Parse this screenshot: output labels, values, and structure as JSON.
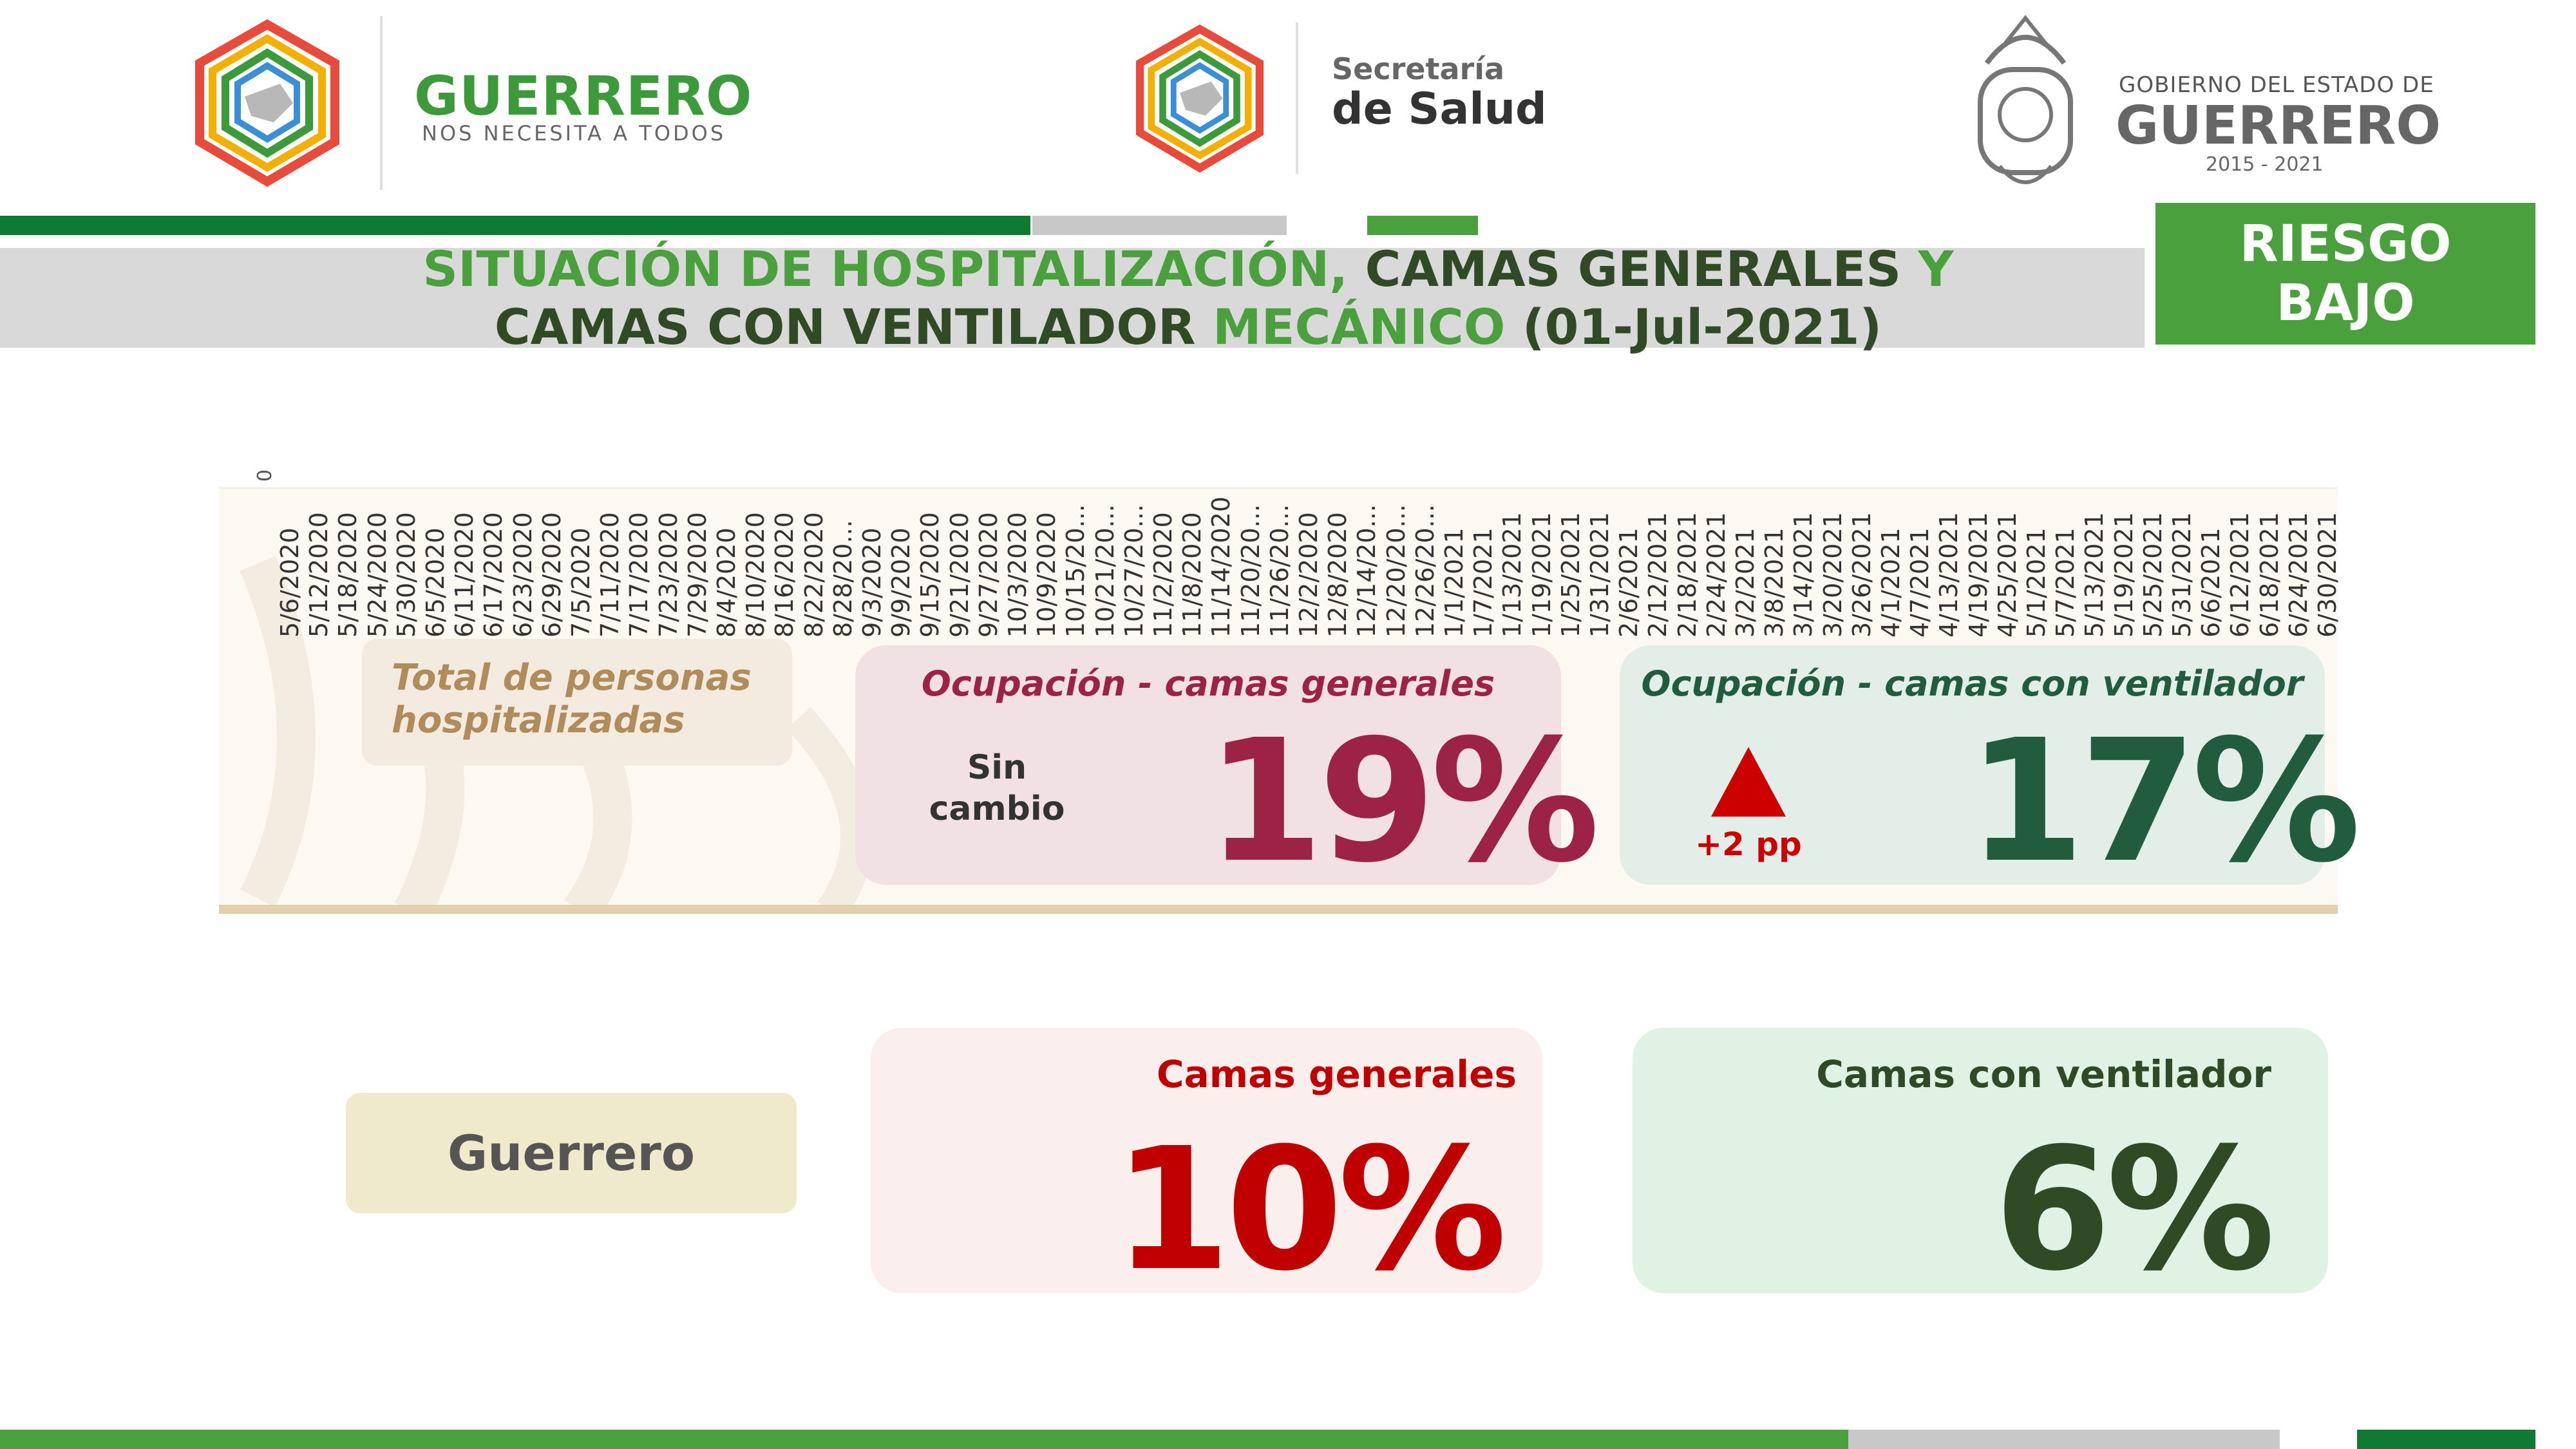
{
  "header": {
    "left_logo": {
      "title": "GUERRERO",
      "subtitle": "NOS NECESITA A TODOS"
    },
    "center_logo": {
      "line1": "Secretaría",
      "line2": "de Salud"
    },
    "right_logo": {
      "line1": "GOBIERNO DEL ESTADO DE",
      "line2": "GUERRERO",
      "line3": "2015 - 2021"
    }
  },
  "title": {
    "line1_part1": "SITUACIÓN DE HOSPITALIZACIÓN,",
    "line1_part2": " CAMAS GENERALES ",
    "line1_part3": "Y",
    "line2_part1": "CAMAS CON VENTILADOR ",
    "line2_part2": "MECÁNICO",
    "line2_part3": " (01-Jul-2021)"
  },
  "risk_badge": {
    "line1": "RIESGO",
    "line2": "BAJO"
  },
  "chart_data": {
    "type": "line",
    "title": "",
    "y_tick_label": "0",
    "x": [
      "5/6/2020",
      "5/12/2020",
      "5/18/2020",
      "5/24/2020",
      "5/30/2020",
      "6/5/2020",
      "6/11/2020",
      "6/17/2020",
      "6/23/2020",
      "6/29/2020",
      "7/5/2020",
      "7/11/2020",
      "7/17/2020",
      "7/23/2020",
      "7/29/2020",
      "8/4/2020",
      "8/10/2020",
      "8/16/2020",
      "8/22/2020",
      "8/28/20...",
      "9/3/2020",
      "9/9/2020",
      "9/15/2020",
      "9/21/2020",
      "9/27/2020",
      "10/3/2020",
      "10/9/2020",
      "10/15/20...",
      "10/21/20...",
      "10/27/20...",
      "11/2/2020",
      "11/8/2020",
      "11/14/2020",
      "11/20/20...",
      "11/26/20...",
      "12/2/2020",
      "12/8/2020",
      "12/14/20...",
      "12/20/20...",
      "12/26/20...",
      "1/1/2021",
      "1/7/2021",
      "1/13/2021",
      "1/19/2021",
      "1/25/2021",
      "1/31/2021",
      "2/6/2021",
      "2/12/2021",
      "2/18/2021",
      "2/24/2021",
      "3/2/2021",
      "3/8/2021",
      "3/14/2021",
      "3/20/2021",
      "3/26/2021",
      "4/1/2021",
      "4/7/2021",
      "4/13/2021",
      "4/19/2021",
      "4/25/2021",
      "5/1/2021",
      "5/7/2021",
      "5/13/2021",
      "5/19/2021",
      "5/25/2021",
      "5/31/2021",
      "6/6/2021",
      "6/12/2021",
      "6/18/2021",
      "6/24/2021",
      "6/30/2021"
    ]
  },
  "summary": {
    "total_label": "Total de personas hospitalizadas",
    "general": {
      "label": "Ocupación - camas generales",
      "change_line1": "Sin",
      "change_line2": "cambio",
      "value": "19%"
    },
    "ventilator": {
      "label": "Ocupación - camas con ventilador",
      "change": "+2 pp",
      "value": "17%"
    }
  },
  "state": {
    "name": "Guerrero",
    "general": {
      "label": "Camas generales",
      "value": "10%"
    },
    "ventilator": {
      "label": "Camas con ventilador",
      "value": "6%"
    }
  },
  "colors": {
    "green": "#4aa03c",
    "dark_green": "#2f4a25",
    "crimson": "#9c2346",
    "red": "#c00000",
    "teal_dark": "#215c3f",
    "tan": "#b08c5a"
  }
}
